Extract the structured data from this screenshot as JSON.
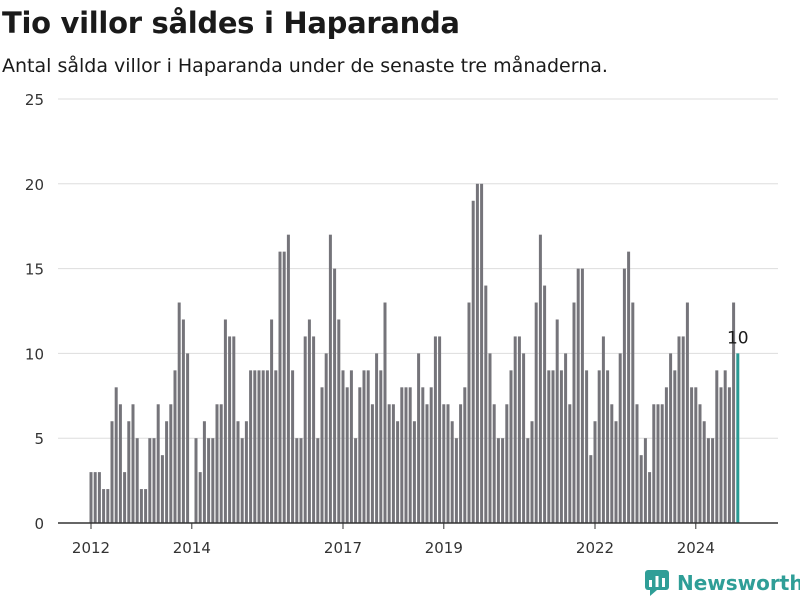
{
  "chart": {
    "title": "Tio villor såldes i Haparanda",
    "subtitle": "Antal sålda villor i Haparanda under de senaste tre månaderna."
  },
  "brand": {
    "name": "Newsworthy",
    "color": "#2f9e97"
  },
  "colors": {
    "bar": "#75747a",
    "highlight": "#2a9a94",
    "grid": "#dddddd",
    "axis": "#333333"
  },
  "chart_data": {
    "type": "bar",
    "title": "Tio villor såldes i Haparanda",
    "subtitle": "Antal sålda villor i Haparanda under de senaste tre månaderna.",
    "xlabel": "",
    "ylabel": "",
    "ylim": [
      0,
      25
    ],
    "yticks": [
      0,
      5,
      10,
      15,
      20,
      25
    ],
    "xticks": [
      "2012",
      "2014",
      "2017",
      "2019",
      "2022",
      "2024"
    ],
    "grid": true,
    "start": "2012-01",
    "interval": "month",
    "values": [
      3,
      3,
      3,
      2,
      2,
      6,
      8,
      7,
      3,
      6,
      7,
      5,
      2,
      2,
      5,
      5,
      7,
      4,
      6,
      7,
      9,
      13,
      12,
      10,
      0,
      5,
      3,
      6,
      5,
      5,
      7,
      7,
      12,
      11,
      11,
      6,
      5,
      6,
      9,
      9,
      9,
      9,
      9,
      12,
      9,
      16,
      16,
      17,
      9,
      5,
      5,
      11,
      12,
      11,
      5,
      8,
      10,
      17,
      15,
      12,
      9,
      8,
      9,
      5,
      8,
      9,
      9,
      7,
      10,
      9,
      13,
      7,
      7,
      6,
      8,
      8,
      8,
      6,
      10,
      8,
      7,
      8,
      11,
      11,
      7,
      7,
      6,
      5,
      7,
      8,
      13,
      19,
      20,
      20,
      14,
      10,
      7,
      5,
      5,
      7,
      9,
      11,
      11,
      10,
      5,
      6,
      13,
      17,
      14,
      9,
      9,
      12,
      9,
      10,
      7,
      13,
      15,
      15,
      9,
      4,
      6,
      9,
      11,
      9,
      7,
      6,
      10,
      15,
      16,
      13,
      7,
      4,
      5,
      3,
      7,
      7,
      7,
      8,
      10,
      9,
      11,
      11,
      13,
      8,
      8,
      7,
      6,
      5,
      5,
      9,
      8,
      9,
      8,
      13,
      10
    ],
    "highlight": {
      "label": "10",
      "value": 10
    }
  }
}
